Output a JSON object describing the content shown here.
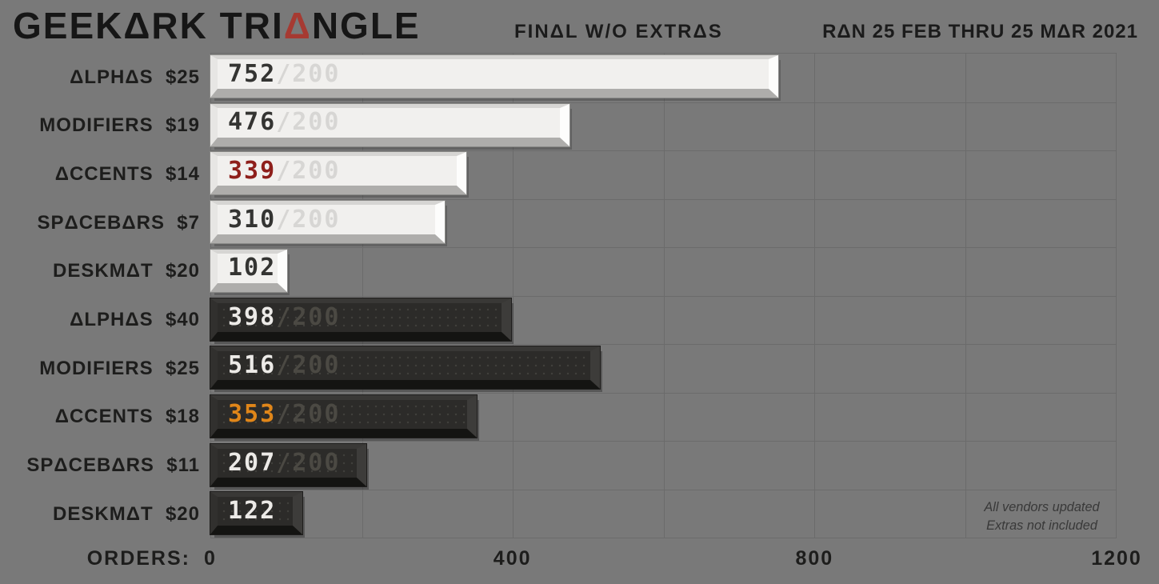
{
  "header": {
    "title_prefix": "GEEKARK TRI",
    "title_accent": "A",
    "title_suffix": "NGLE",
    "subtitle": "FINAL W/O EXTRAS",
    "date_range": "RAN 25 FEB THRU 25 MAR 2021"
  },
  "chart_data": {
    "type": "bar",
    "title": "GEEKARK TRIANGLE",
    "subtitle": "FINAL W/O EXTRAS",
    "date_range": "RAN 25 FEB THRU 25 MAR 2021",
    "xlabel": "ORDERS:",
    "xlim": [
      0,
      1200
    ],
    "x_ticks": [
      0,
      400,
      800,
      1200
    ],
    "gridline_step_orders": 200,
    "grid": true,
    "legend_position": "none",
    "moq_per_kit": 200,
    "rows": [
      {
        "label": "ALPHAS  $25",
        "value": 752,
        "moq_text": "/200",
        "theme": "light",
        "count_color": "#343432"
      },
      {
        "label": "MODIFIERS  $19",
        "value": 476,
        "moq_text": "/200",
        "theme": "light",
        "count_color": "#343432"
      },
      {
        "label": "ACCENTS  $14",
        "value": 339,
        "moq_text": "/200",
        "theme": "light",
        "count_color": "#8e1f1b"
      },
      {
        "label": "SPACEBARS  $7",
        "value": 310,
        "moq_text": "/200",
        "theme": "light",
        "count_color": "#343432"
      },
      {
        "label": "DESKMAT  $20",
        "value": 102,
        "moq_text": "",
        "theme": "light",
        "count_color": "#343432"
      },
      {
        "label": "ALPHAS  $40",
        "value": 398,
        "moq_text": "/200",
        "theme": "dark",
        "count_color": "#eceae7"
      },
      {
        "label": "MODIFIERS  $25",
        "value": 516,
        "moq_text": "/200",
        "theme": "dark",
        "count_color": "#eceae7"
      },
      {
        "label": "ACCENTS  $18",
        "value": 353,
        "moq_text": "/200",
        "theme": "dark",
        "count_color": "#e08619"
      },
      {
        "label": "SPACEBARS  $11",
        "value": 207,
        "moq_text": "/200",
        "theme": "dark",
        "count_color": "#eceae7"
      },
      {
        "label": "DESKMAT  $20",
        "value": 122,
        "moq_text": "",
        "theme": "dark",
        "count_color": "#eceae7"
      }
    ]
  },
  "footnote": {
    "line1": "All vendors updated",
    "line2": "Extras not included"
  },
  "colors": {
    "background": "#797979",
    "gridline": "#6b6b6b",
    "heading_text": "#161616",
    "accent_triangle_red": "#a63a32",
    "light_cap_face": "#f1f0ee",
    "dark_cap_face": "#2c2b29",
    "light_cap_moq": "#d7d6d4",
    "dark_cap_moq": "#4b4943",
    "special_red_count": "#8e1f1b",
    "special_orange_count": "#e08619"
  }
}
